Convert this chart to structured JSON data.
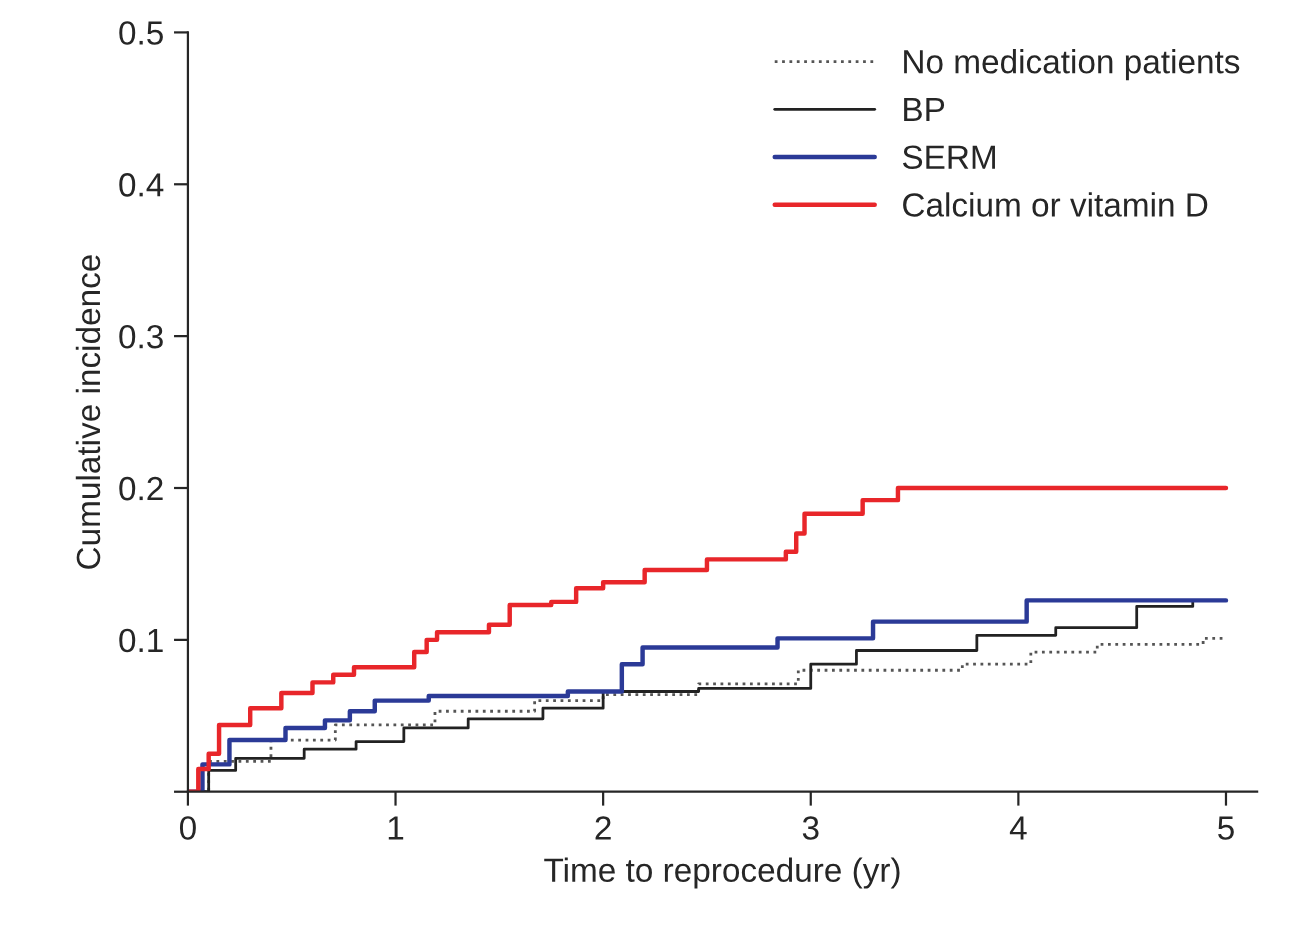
{
  "chart_data": {
    "type": "step",
    "xlabel": "Time to reprocedure (yr)",
    "ylabel": "Cumulative incidence",
    "xlim": [
      0,
      5.15
    ],
    "ylim": [
      0,
      0.5
    ],
    "xticks": [
      0,
      1,
      2,
      3,
      4,
      5
    ],
    "yticks": [
      {
        "value": 0,
        "label": null
      },
      0.1,
      0.2,
      0.3,
      0.4,
      0.5
    ],
    "legend": "top right",
    "grid": false,
    "series": [
      {
        "name": "No medication patients",
        "color": "#555555",
        "line_style": "dotted",
        "x": [
          0,
          0.1,
          0.4,
          0.71,
          1.19,
          1.67,
          2.0,
          2.46,
          2.94,
          3.73,
          4.06,
          4.38,
          4.89,
          5.0
        ],
        "values": [
          0,
          0.02,
          0.034,
          0.044,
          0.053,
          0.06,
          0.064,
          0.071,
          0.08,
          0.084,
          0.092,
          0.097,
          0.101,
          0.101
        ]
      },
      {
        "name": "BP",
        "color": "#222222",
        "line_style": "solid",
        "x": [
          0,
          0.1,
          0.23,
          0.56,
          0.81,
          1.04,
          1.35,
          1.71,
          2.0,
          2.46,
          3.0,
          3.22,
          3.8,
          4.18,
          4.57,
          4.84
        ],
        "values": [
          0,
          0.014,
          0.022,
          0.028,
          0.033,
          0.042,
          0.048,
          0.055,
          0.066,
          0.068,
          0.084,
          0.093,
          0.103,
          0.108,
          0.122,
          0.125
        ]
      },
      {
        "name": "SERM",
        "color": "#2b3a97",
        "line_style": "solid",
        "x": [
          0,
          0.07,
          0.2,
          0.47,
          0.66,
          0.78,
          0.9,
          1.16,
          1.83,
          2.09,
          2.19,
          2.84,
          3.3,
          4.04,
          5.0
        ],
        "values": [
          0,
          0.018,
          0.034,
          0.042,
          0.047,
          0.053,
          0.06,
          0.063,
          0.066,
          0.084,
          0.095,
          0.101,
          0.112,
          0.126,
          0.126
        ]
      },
      {
        "name": "Calcium or vitamin D",
        "color": "#e8262a",
        "line_style": "solid",
        "x": [
          0,
          0.05,
          0.1,
          0.15,
          0.3,
          0.45,
          0.6,
          0.7,
          0.8,
          1.09,
          1.15,
          1.2,
          1.45,
          1.55,
          1.75,
          1.87,
          2.0,
          2.2,
          2.5,
          2.88,
          2.93,
          2.97,
          3.25,
          3.42,
          5.0
        ],
        "values": [
          0,
          0.015,
          0.025,
          0.044,
          0.055,
          0.065,
          0.072,
          0.077,
          0.082,
          0.092,
          0.1,
          0.105,
          0.11,
          0.123,
          0.125,
          0.134,
          0.138,
          0.146,
          0.153,
          0.158,
          0.17,
          0.183,
          0.192,
          0.2,
          0.2
        ]
      }
    ]
  }
}
